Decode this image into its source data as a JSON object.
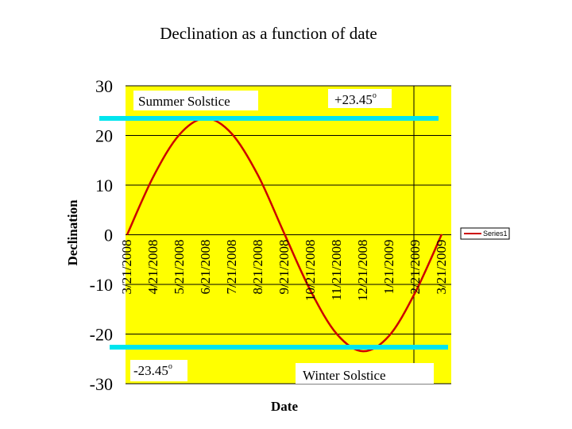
{
  "chart_data": {
    "type": "line",
    "title": "Declination as a function of date",
    "xlabel": "Date",
    "ylabel": "Declination",
    "ylim": [
      -30,
      30
    ],
    "yticks": [
      30,
      20,
      10,
      0,
      -10,
      -20,
      -30
    ],
    "x": [
      "3/21/2008",
      "4/21/2008",
      "5/21/2008",
      "6/21/2008",
      "7/21/2008",
      "8/21/2008",
      "9/21/2008",
      "10/21/2008",
      "11/21/2008",
      "12/21/2008",
      "1/21/2009",
      "2/21/2009",
      "3/21/2009"
    ],
    "series": [
      {
        "name": "Series1",
        "values": [
          0,
          11.7,
          20.2,
          23.45,
          20.3,
          11.9,
          0.2,
          -11.3,
          -20.0,
          -23.45,
          -20.3,
          -11.5,
          0.1
        ]
      }
    ],
    "grid": true,
    "legend": "right",
    "annotations": {
      "summer_label": "Summer Solstice",
      "summer_value": "+23.45",
      "winter_label": "Winter Solstice",
      "winter_value": "-23.45",
      "degree_mark": "o"
    },
    "colors": {
      "plot_background": "#ffff00",
      "line": "#cc0000",
      "solstice_bar": "#00e5ee",
      "gridline": "#000000"
    }
  }
}
